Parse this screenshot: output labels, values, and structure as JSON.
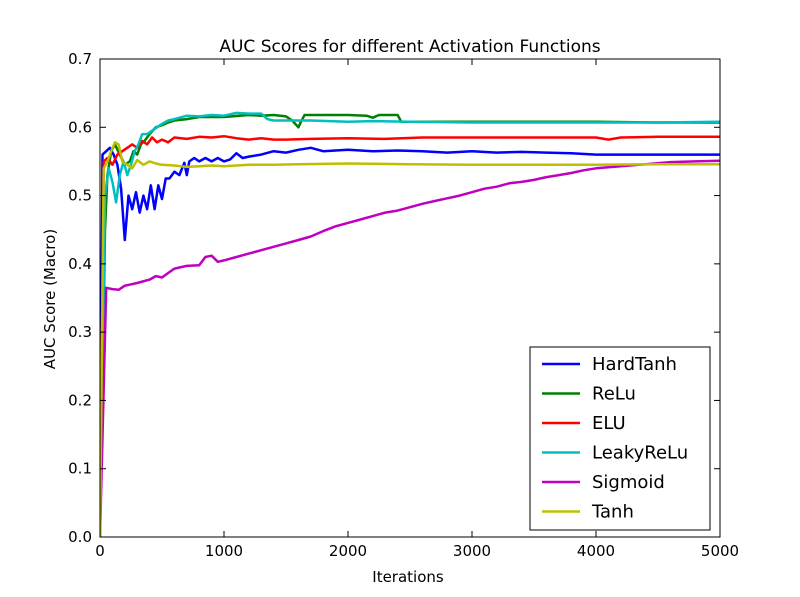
{
  "chart_data": {
    "type": "line",
    "title": "AUC Scores for different Activation Functions",
    "xlabel": "Iterations",
    "ylabel": "AUC Score (Macro)",
    "xlim": [
      0,
      5000
    ],
    "ylim": [
      0.0,
      0.7
    ],
    "xticks": [
      0,
      1000,
      2000,
      3000,
      4000,
      5000
    ],
    "xtick_labels": [
      "0",
      "1000",
      "2000",
      "3000",
      "4000",
      "5000"
    ],
    "yticks": [
      0.0,
      0.1,
      0.2,
      0.3,
      0.4,
      0.5,
      0.6,
      0.7
    ],
    "ytick_labels": [
      "0.0",
      "0.1",
      "0.2",
      "0.3",
      "0.4",
      "0.5",
      "0.6",
      "0.7"
    ],
    "grid": false,
    "legend_position": "lower-right",
    "series": [
      {
        "name": "HardTanh",
        "color": "#0000ff",
        "points": [
          [
            0,
            0.0
          ],
          [
            20,
            0.56
          ],
          [
            50,
            0.565
          ],
          [
            80,
            0.57
          ],
          [
            110,
            0.56
          ],
          [
            140,
            0.545
          ],
          [
            170,
            0.51
          ],
          [
            200,
            0.435
          ],
          [
            230,
            0.5
          ],
          [
            260,
            0.48
          ],
          [
            290,
            0.505
          ],
          [
            320,
            0.475
          ],
          [
            350,
            0.5
          ],
          [
            380,
            0.48
          ],
          [
            410,
            0.515
          ],
          [
            440,
            0.48
          ],
          [
            470,
            0.515
          ],
          [
            500,
            0.495
          ],
          [
            530,
            0.525
          ],
          [
            560,
            0.525
          ],
          [
            600,
            0.535
          ],
          [
            640,
            0.53
          ],
          [
            680,
            0.548
          ],
          [
            700,
            0.53
          ],
          [
            720,
            0.55
          ],
          [
            760,
            0.555
          ],
          [
            800,
            0.55
          ],
          [
            850,
            0.555
          ],
          [
            900,
            0.55
          ],
          [
            950,
            0.555
          ],
          [
            1000,
            0.55
          ],
          [
            1050,
            0.553
          ],
          [
            1100,
            0.562
          ],
          [
            1150,
            0.555
          ],
          [
            1200,
            0.557
          ],
          [
            1300,
            0.56
          ],
          [
            1400,
            0.565
          ],
          [
            1500,
            0.563
          ],
          [
            1600,
            0.567
          ],
          [
            1700,
            0.57
          ],
          [
            1800,
            0.565
          ],
          [
            2000,
            0.567
          ],
          [
            2200,
            0.565
          ],
          [
            2400,
            0.566
          ],
          [
            2600,
            0.565
          ],
          [
            2800,
            0.563
          ],
          [
            3000,
            0.565
          ],
          [
            3200,
            0.563
          ],
          [
            3400,
            0.564
          ],
          [
            3600,
            0.563
          ],
          [
            3800,
            0.562
          ],
          [
            4000,
            0.56
          ],
          [
            4200,
            0.56
          ],
          [
            4400,
            0.56
          ],
          [
            4600,
            0.56
          ],
          [
            4800,
            0.56
          ],
          [
            5000,
            0.56
          ]
        ]
      },
      {
        "name": "ReLu",
        "color": "#008000",
        "points": [
          [
            0,
            0.0
          ],
          [
            40,
            0.45
          ],
          [
            60,
            0.53
          ],
          [
            90,
            0.565
          ],
          [
            120,
            0.575
          ],
          [
            160,
            0.56
          ],
          [
            200,
            0.545
          ],
          [
            240,
            0.55
          ],
          [
            270,
            0.565
          ],
          [
            300,
            0.56
          ],
          [
            330,
            0.575
          ],
          [
            360,
            0.58
          ],
          [
            400,
            0.59
          ],
          [
            450,
            0.6
          ],
          [
            500,
            0.603
          ],
          [
            550,
            0.607
          ],
          [
            600,
            0.61
          ],
          [
            700,
            0.612
          ],
          [
            800,
            0.615
          ],
          [
            1000,
            0.615
          ],
          [
            1200,
            0.618
          ],
          [
            1300,
            0.617
          ],
          [
            1400,
            0.618
          ],
          [
            1500,
            0.616
          ],
          [
            1550,
            0.61
          ],
          [
            1600,
            0.6
          ],
          [
            1620,
            0.608
          ],
          [
            1650,
            0.618
          ],
          [
            1800,
            0.618
          ],
          [
            2000,
            0.618
          ],
          [
            2150,
            0.617
          ],
          [
            2200,
            0.614
          ],
          [
            2250,
            0.618
          ],
          [
            2400,
            0.618
          ],
          [
            2430,
            0.608
          ],
          [
            2600,
            0.608
          ],
          [
            3000,
            0.608
          ],
          [
            3500,
            0.608
          ],
          [
            4000,
            0.608
          ],
          [
            4500,
            0.607
          ],
          [
            5000,
            0.607
          ]
        ]
      },
      {
        "name": "ELU",
        "color": "#ff0000",
        "points": [
          [
            0,
            0.0
          ],
          [
            30,
            0.55
          ],
          [
            60,
            0.555
          ],
          [
            100,
            0.545
          ],
          [
            140,
            0.56
          ],
          [
            180,
            0.565
          ],
          [
            220,
            0.57
          ],
          [
            260,
            0.575
          ],
          [
            300,
            0.57
          ],
          [
            340,
            0.58
          ],
          [
            380,
            0.575
          ],
          [
            420,
            0.585
          ],
          [
            460,
            0.578
          ],
          [
            500,
            0.582
          ],
          [
            550,
            0.578
          ],
          [
            600,
            0.585
          ],
          [
            700,
            0.583
          ],
          [
            800,
            0.586
          ],
          [
            900,
            0.585
          ],
          [
            1000,
            0.587
          ],
          [
            1100,
            0.584
          ],
          [
            1200,
            0.582
          ],
          [
            1300,
            0.584
          ],
          [
            1400,
            0.582
          ],
          [
            1500,
            0.582
          ],
          [
            1700,
            0.583
          ],
          [
            2000,
            0.584
          ],
          [
            2300,
            0.583
          ],
          [
            2600,
            0.585
          ],
          [
            3000,
            0.585
          ],
          [
            3500,
            0.585
          ],
          [
            4000,
            0.585
          ],
          [
            4100,
            0.582
          ],
          [
            4200,
            0.585
          ],
          [
            4500,
            0.586
          ],
          [
            5000,
            0.586
          ]
        ]
      },
      {
        "name": "LeakyReLu",
        "color": "#00bfbf",
        "points": [
          [
            0,
            0.0
          ],
          [
            40,
            0.5
          ],
          [
            70,
            0.54
          ],
          [
            100,
            0.52
          ],
          [
            130,
            0.49
          ],
          [
            160,
            0.53
          ],
          [
            190,
            0.55
          ],
          [
            220,
            0.53
          ],
          [
            250,
            0.545
          ],
          [
            280,
            0.565
          ],
          [
            310,
            0.575
          ],
          [
            340,
            0.59
          ],
          [
            380,
            0.59
          ],
          [
            420,
            0.595
          ],
          [
            460,
            0.6
          ],
          [
            500,
            0.605
          ],
          [
            550,
            0.61
          ],
          [
            600,
            0.612
          ],
          [
            700,
            0.617
          ],
          [
            800,
            0.616
          ],
          [
            900,
            0.618
          ],
          [
            1000,
            0.617
          ],
          [
            1100,
            0.621
          ],
          [
            1200,
            0.62
          ],
          [
            1300,
            0.62
          ],
          [
            1350,
            0.612
          ],
          [
            1400,
            0.61
          ],
          [
            1500,
            0.61
          ],
          [
            1700,
            0.61
          ],
          [
            2000,
            0.608
          ],
          [
            2200,
            0.609
          ],
          [
            2500,
            0.608
          ],
          [
            3000,
            0.607
          ],
          [
            3500,
            0.607
          ],
          [
            4000,
            0.607
          ],
          [
            4500,
            0.607
          ],
          [
            5000,
            0.608
          ]
        ]
      },
      {
        "name": "Sigmoid",
        "color": "#bf00bf",
        "points": [
          [
            0,
            0.0
          ],
          [
            50,
            0.365
          ],
          [
            100,
            0.363
          ],
          [
            150,
            0.362
          ],
          [
            200,
            0.368
          ],
          [
            300,
            0.372
          ],
          [
            400,
            0.377
          ],
          [
            450,
            0.382
          ],
          [
            500,
            0.38
          ],
          [
            560,
            0.388
          ],
          [
            600,
            0.393
          ],
          [
            700,
            0.397
          ],
          [
            800,
            0.398
          ],
          [
            850,
            0.41
          ],
          [
            900,
            0.412
          ],
          [
            950,
            0.403
          ],
          [
            1000,
            0.405
          ],
          [
            1100,
            0.41
          ],
          [
            1200,
            0.415
          ],
          [
            1300,
            0.42
          ],
          [
            1400,
            0.425
          ],
          [
            1500,
            0.43
          ],
          [
            1600,
            0.435
          ],
          [
            1700,
            0.44
          ],
          [
            1800,
            0.448
          ],
          [
            1900,
            0.455
          ],
          [
            2000,
            0.46
          ],
          [
            2100,
            0.465
          ],
          [
            2200,
            0.47
          ],
          [
            2300,
            0.475
          ],
          [
            2400,
            0.478
          ],
          [
            2500,
            0.483
          ],
          [
            2600,
            0.488
          ],
          [
            2700,
            0.492
          ],
          [
            2800,
            0.496
          ],
          [
            2900,
            0.5
          ],
          [
            3000,
            0.505
          ],
          [
            3100,
            0.51
          ],
          [
            3200,
            0.513
          ],
          [
            3300,
            0.518
          ],
          [
            3400,
            0.52
          ],
          [
            3500,
            0.523
          ],
          [
            3600,
            0.527
          ],
          [
            3700,
            0.53
          ],
          [
            3800,
            0.533
          ],
          [
            3900,
            0.537
          ],
          [
            4000,
            0.54
          ],
          [
            4200,
            0.543
          ],
          [
            4400,
            0.546
          ],
          [
            4600,
            0.549
          ],
          [
            4800,
            0.55
          ],
          [
            5000,
            0.551
          ]
        ]
      },
      {
        "name": "Tanh",
        "color": "#bfbf00",
        "points": [
          [
            0,
            0.0
          ],
          [
            30,
            0.54
          ],
          [
            60,
            0.55
          ],
          [
            90,
            0.565
          ],
          [
            120,
            0.578
          ],
          [
            150,
            0.575
          ],
          [
            180,
            0.55
          ],
          [
            220,
            0.545
          ],
          [
            260,
            0.54
          ],
          [
            300,
            0.552
          ],
          [
            350,
            0.545
          ],
          [
            400,
            0.55
          ],
          [
            450,
            0.547
          ],
          [
            500,
            0.545
          ],
          [
            600,
            0.544
          ],
          [
            700,
            0.542
          ],
          [
            800,
            0.543
          ],
          [
            900,
            0.544
          ],
          [
            1000,
            0.543
          ],
          [
            1200,
            0.545
          ],
          [
            1400,
            0.545
          ],
          [
            1600,
            0.546
          ],
          [
            2000,
            0.547
          ],
          [
            2500,
            0.546
          ],
          [
            3000,
            0.545
          ],
          [
            3500,
            0.545
          ],
          [
            4000,
            0.545
          ],
          [
            4500,
            0.546
          ],
          [
            5000,
            0.546
          ]
        ]
      }
    ]
  }
}
